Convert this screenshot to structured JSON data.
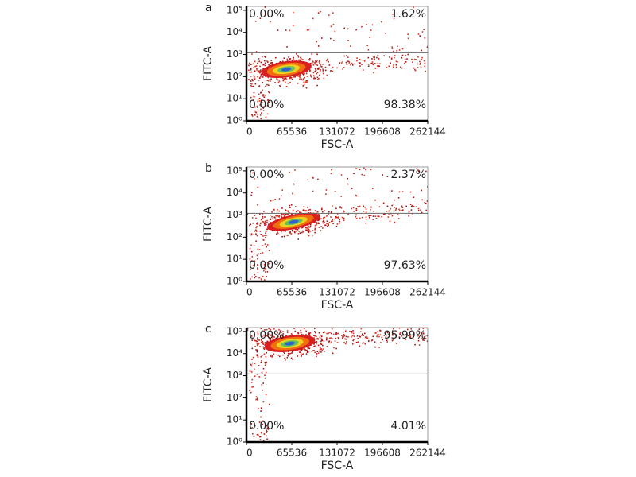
{
  "chart_data": [
    {
      "type": "density",
      "panel": "a",
      "xlabel": "FSC-A",
      "ylabel": "FITC-A",
      "quadrants": [
        "0.00%",
        "1.62%",
        "0.00%",
        "98.38%"
      ],
      "xlim": [
        0,
        262144
      ],
      "xticks": [
        0,
        65536,
        131072,
        196608,
        262144
      ],
      "ylim": [
        1,
        150000
      ],
      "log_y": true,
      "yticks": [
        {
          "value": 1,
          "label": "10⁰"
        },
        {
          "value": 10,
          "label": "10¹"
        },
        {
          "value": 100,
          "label": "10²"
        },
        {
          "value": 1000,
          "label": "10³"
        },
        {
          "value": 10000,
          "label": "10⁴"
        },
        {
          "value": 100000,
          "label": "10⁵"
        }
      ],
      "gate_y": 1200
    },
    {
      "type": "density",
      "panel": "b",
      "xlabel": "FSC-A",
      "ylabel": "FITC-A",
      "quadrants": [
        "0.00%",
        "2.37%",
        "0.00%",
        "97.63%"
      ],
      "xlim": [
        0,
        262144
      ],
      "xticks": [
        0,
        65536,
        131072,
        196608,
        262144
      ],
      "ylim": [
        1,
        150000
      ],
      "log_y": true,
      "yticks": [
        {
          "value": 1,
          "label": "10⁰"
        },
        {
          "value": 10,
          "label": "10¹"
        },
        {
          "value": 100,
          "label": "10²"
        },
        {
          "value": 1000,
          "label": "10³"
        },
        {
          "value": 10000,
          "label": "10⁴"
        },
        {
          "value": 100000,
          "label": "10⁵"
        }
      ],
      "gate_y": 1200
    },
    {
      "type": "density",
      "panel": "c",
      "xlabel": "FSC-A",
      "ylabel": "FITC-A",
      "quadrants": [
        "0.00%",
        "95.99%",
        "0.00%",
        "4.01%"
      ],
      "xlim": [
        0,
        262144
      ],
      "xticks": [
        0,
        65536,
        131072,
        196608,
        262144
      ],
      "ylim": [
        1,
        150000
      ],
      "log_y": true,
      "yticks": [
        {
          "value": 1,
          "label": "10⁰"
        },
        {
          "value": 10,
          "label": "10¹"
        },
        {
          "value": 100,
          "label": "10²"
        },
        {
          "value": 1000,
          "label": "10³"
        },
        {
          "value": 10000,
          "label": "10⁴"
        },
        {
          "value": 100000,
          "label": "10⁵"
        }
      ],
      "gate_y": 1200
    }
  ]
}
